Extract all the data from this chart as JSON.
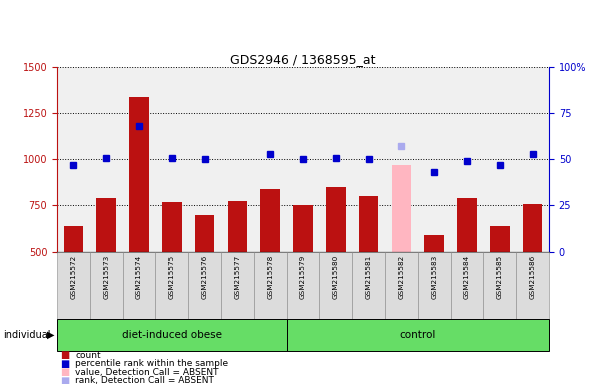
{
  "title": "GDS2946 / 1368595_at",
  "samples": [
    "GSM215572",
    "GSM215573",
    "GSM215574",
    "GSM215575",
    "GSM215576",
    "GSM215577",
    "GSM215578",
    "GSM215579",
    "GSM215580",
    "GSM215581",
    "GSM215582",
    "GSM215583",
    "GSM215584",
    "GSM215585",
    "GSM215586"
  ],
  "counts": [
    640,
    790,
    1340,
    770,
    700,
    775,
    840,
    750,
    850,
    800,
    null,
    590,
    790,
    640,
    760
  ],
  "absent_count": [
    null,
    null,
    null,
    null,
    null,
    null,
    null,
    null,
    null,
    null,
    970,
    null,
    null,
    null,
    null
  ],
  "ranks_pct": [
    47,
    51,
    68,
    51,
    50,
    null,
    53,
    50,
    51,
    50,
    null,
    43,
    49,
    47,
    53
  ],
  "absent_rank_pct": [
    null,
    null,
    null,
    null,
    null,
    null,
    null,
    null,
    null,
    null,
    57,
    null,
    null,
    null,
    null
  ],
  "bar_color": "#BB1111",
  "absent_bar_color": "#FFB6C1",
  "rank_color": "#0000CC",
  "absent_rank_color": "#AAAAEE",
  "ylim_left": [
    500,
    1500
  ],
  "ylim_right": [
    0,
    100
  ],
  "yticks_left": [
    500,
    750,
    1000,
    1250,
    1500
  ],
  "yticks_right": [
    0,
    25,
    50,
    75,
    100
  ],
  "legend_items": [
    {
      "label": "count",
      "color": "#BB1111"
    },
    {
      "label": "percentile rank within the sample",
      "color": "#0000CC"
    },
    {
      "label": "value, Detection Call = ABSENT",
      "color": "#FFB6C1"
    },
    {
      "label": "rank, Detection Call = ABSENT",
      "color": "#AAAAEE"
    }
  ],
  "obese_label": "diet-induced obese",
  "control_label": "control",
  "n_obese": 7,
  "n_control": 8
}
